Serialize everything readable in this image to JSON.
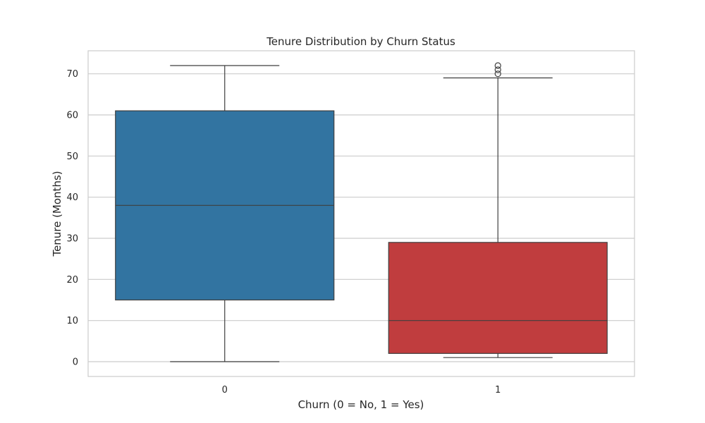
{
  "chart_data": {
    "type": "box",
    "title": "Tenure Distribution by Churn Status",
    "xlabel": "Churn (0 = No, 1 = Yes)",
    "ylabel": "Tenure (Months)",
    "ylim": [
      -3.6,
      75.6
    ],
    "yticks": [
      0,
      10,
      20,
      30,
      40,
      50,
      60,
      70
    ],
    "grid": true,
    "categories": [
      "0",
      "1"
    ],
    "boxes": [
      {
        "category": "0",
        "whisker_low": 0,
        "q1": 15,
        "median": 38,
        "q3": 61,
        "whisker_high": 72,
        "outliers": [],
        "color": "#3274a1"
      },
      {
        "category": "1",
        "whisker_low": 1,
        "q1": 2,
        "median": 10,
        "q3": 29,
        "whisker_high": 69,
        "outliers": [
          70,
          71,
          72
        ],
        "color": "#c03d3e"
      }
    ]
  }
}
